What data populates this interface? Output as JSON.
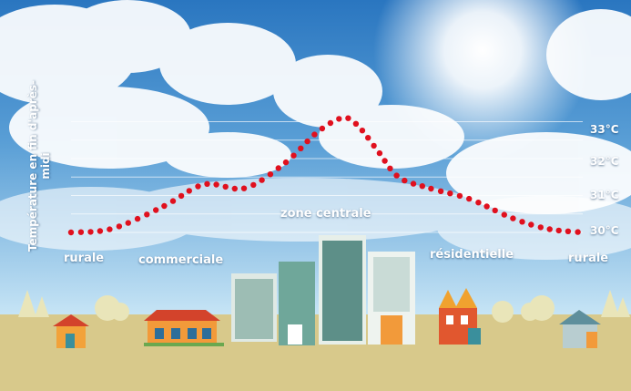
{
  "chart_data": {
    "type": "line",
    "ylabel": "Température en fin d'après-midi",
    "y_ticks": [
      "30°C",
      "31°C",
      "32°C",
      "33°C"
    ],
    "ylim": [
      30,
      33
    ],
    "zones": [
      "rurale",
      "commerciale",
      "zone centrale",
      "résidentielle",
      "rurale"
    ],
    "series": [
      {
        "color": "#e0101e",
        "style": "dotted",
        "x": [
          0,
          0.08,
          0.18,
          0.26,
          0.34,
          0.42,
          0.48,
          0.53,
          0.56,
          0.6,
          0.64,
          0.7,
          0.78,
          0.86,
          0.93,
          1.0
        ],
        "values": [
          30.0,
          30.1,
          30.7,
          31.3,
          31.2,
          31.9,
          32.7,
          33.1,
          32.9,
          32.2,
          31.5,
          31.2,
          30.9,
          30.4,
          30.1,
          30.0
        ]
      }
    ],
    "grid": true
  },
  "colors": {
    "sky_top": "#2c7bc4",
    "sky_bottom": "#bfe0f5",
    "ground": "#d9c98a",
    "dots": "#e0101e"
  }
}
